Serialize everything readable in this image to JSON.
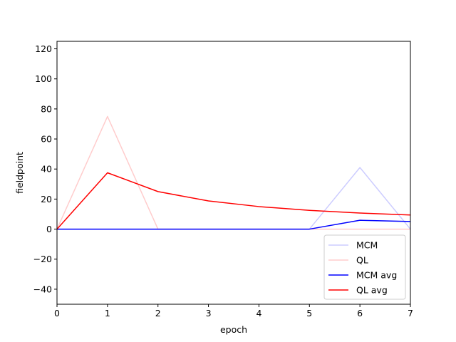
{
  "chart_data": {
    "type": "line",
    "title": "",
    "xlabel": "epoch",
    "ylabel": "fieldpoint",
    "xlim": [
      0,
      7
    ],
    "ylim": [
      -50,
      125
    ],
    "xticks": [
      0,
      1,
      2,
      3,
      4,
      5,
      6,
      7
    ],
    "yticks": [
      -40,
      -20,
      0,
      20,
      40,
      60,
      80,
      100,
      120
    ],
    "grid": false,
    "legend_position": "lower-right",
    "x": [
      0,
      1,
      2,
      3,
      4,
      5,
      6,
      7
    ],
    "series": [
      {
        "name": "MCM",
        "color": "#0000ff",
        "alpha": 0.2,
        "values": [
          0,
          0,
          0,
          0,
          0,
          0,
          41,
          0
        ]
      },
      {
        "name": "QL",
        "color": "#ff0000",
        "alpha": 0.2,
        "values": [
          0,
          75,
          0,
          0,
          0,
          0,
          0,
          0
        ]
      },
      {
        "name": "MCM avg",
        "color": "#0000ff",
        "alpha": 1.0,
        "values": [
          0,
          0,
          0,
          0,
          0,
          0,
          5.9,
          5.1
        ]
      },
      {
        "name": "QL avg",
        "color": "#ff0000",
        "alpha": 1.0,
        "values": [
          0,
          37.5,
          25,
          18.75,
          15,
          12.5,
          10.7,
          9.4
        ]
      }
    ]
  }
}
